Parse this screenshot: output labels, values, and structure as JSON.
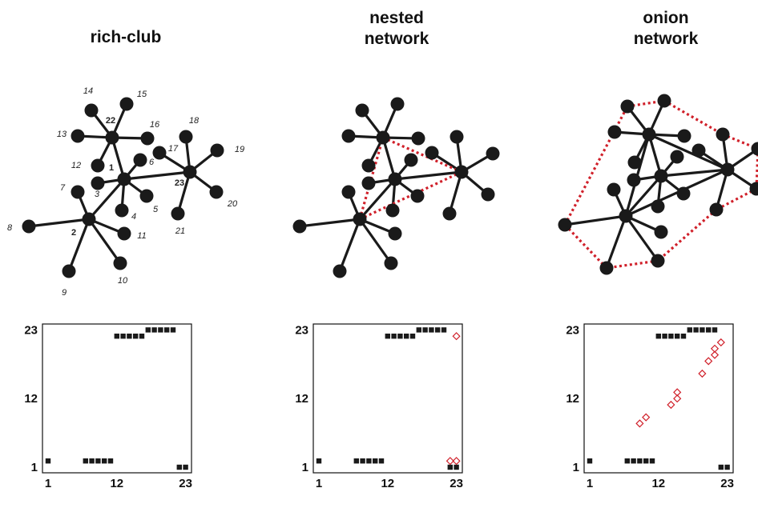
{
  "titles": [
    {
      "lines": [
        "rich-club"
      ]
    },
    {
      "lines": [
        "nested",
        "network"
      ]
    },
    {
      "lines": [
        "onion",
        "network"
      ]
    }
  ],
  "node_labels": [
    "1",
    "2",
    "3",
    "4",
    "5",
    "6",
    "7",
    "8",
    "9",
    "10",
    "11",
    "12",
    "13",
    "14",
    "15",
    "16",
    "17",
    "18",
    "19",
    "20",
    "21",
    "22",
    "23"
  ],
  "bold_labels": [
    "1",
    "2",
    "22",
    "23"
  ],
  "matrix_axis_ticks": [
    "1",
    "12",
    "23"
  ],
  "colors": {
    "node": "#1a1a1a",
    "added_edge": "#d0202a",
    "added_marker": "#d0202a"
  },
  "networks": [
    {
      "name": "rich-club",
      "edges": [
        [
          1,
          2
        ],
        [
          1,
          22
        ],
        [
          1,
          23
        ],
        [
          1,
          3
        ],
        [
          1,
          4
        ],
        [
          1,
          5
        ],
        [
          1,
          6
        ],
        [
          2,
          7
        ],
        [
          2,
          8
        ],
        [
          2,
          9
        ],
        [
          2,
          10
        ],
        [
          2,
          11
        ],
        [
          22,
          12
        ],
        [
          22,
          13
        ],
        [
          22,
          14
        ],
        [
          22,
          15
        ],
        [
          22,
          16
        ],
        [
          23,
          17
        ],
        [
          23,
          18
        ],
        [
          23,
          19
        ],
        [
          23,
          20
        ],
        [
          23,
          21
        ]
      ],
      "added_edges": []
    },
    {
      "name": "nested network",
      "edges": [
        [
          1,
          2
        ],
        [
          1,
          22
        ],
        [
          1,
          23
        ],
        [
          1,
          3
        ],
        [
          1,
          4
        ],
        [
          1,
          5
        ],
        [
          1,
          6
        ],
        [
          2,
          7
        ],
        [
          2,
          8
        ],
        [
          2,
          9
        ],
        [
          2,
          10
        ],
        [
          2,
          11
        ],
        [
          22,
          12
        ],
        [
          22,
          13
        ],
        [
          22,
          14
        ],
        [
          22,
          15
        ],
        [
          22,
          16
        ],
        [
          23,
          17
        ],
        [
          23,
          18
        ],
        [
          23,
          19
        ],
        [
          23,
          20
        ],
        [
          23,
          21
        ]
      ],
      "added_edges": [
        [
          2,
          22
        ],
        [
          2,
          23
        ],
        [
          22,
          23
        ]
      ]
    },
    {
      "name": "onion network",
      "edges": [
        [
          1,
          2
        ],
        [
          1,
          22
        ],
        [
          1,
          23
        ],
        [
          1,
          3
        ],
        [
          1,
          4
        ],
        [
          1,
          5
        ],
        [
          1,
          6
        ],
        [
          2,
          7
        ],
        [
          2,
          8
        ],
        [
          2,
          9
        ],
        [
          2,
          10
        ],
        [
          2,
          11
        ],
        [
          22,
          12
        ],
        [
          22,
          13
        ],
        [
          22,
          14
        ],
        [
          22,
          15
        ],
        [
          22,
          16
        ],
        [
          23,
          17
        ],
        [
          23,
          18
        ],
        [
          23,
          19
        ],
        [
          23,
          20
        ],
        [
          23,
          21
        ],
        [
          2,
          22
        ],
        [
          2,
          23
        ],
        [
          22,
          23
        ]
      ],
      "added_edges": [
        [
          14,
          15
        ],
        [
          15,
          18
        ],
        [
          18,
          19
        ],
        [
          19,
          20
        ],
        [
          20,
          21
        ],
        [
          21,
          10
        ],
        [
          10,
          9
        ],
        [
          9,
          8
        ],
        [
          8,
          14
        ]
      ]
    }
  ],
  "matrices": [
    {
      "name": "rich-club",
      "filled": [
        [
          1,
          22
        ],
        [
          1,
          23
        ],
        [
          2,
          1
        ],
        [
          2,
          7
        ],
        [
          2,
          8
        ],
        [
          2,
          9
        ],
        [
          2,
          10
        ],
        [
          2,
          11
        ],
        [
          22,
          12
        ],
        [
          22,
          13
        ],
        [
          22,
          14
        ],
        [
          22,
          15
        ],
        [
          22,
          16
        ],
        [
          23,
          17
        ],
        [
          23,
          18
        ],
        [
          23,
          19
        ],
        [
          23,
          20
        ],
        [
          23,
          21
        ]
      ],
      "added": []
    },
    {
      "name": "nested network",
      "filled": [
        [
          1,
          22
        ],
        [
          1,
          23
        ],
        [
          2,
          1
        ],
        [
          2,
          7
        ],
        [
          2,
          8
        ],
        [
          2,
          9
        ],
        [
          2,
          10
        ],
        [
          2,
          11
        ],
        [
          22,
          12
        ],
        [
          22,
          13
        ],
        [
          22,
          14
        ],
        [
          22,
          15
        ],
        [
          22,
          16
        ],
        [
          23,
          17
        ],
        [
          23,
          18
        ],
        [
          23,
          19
        ],
        [
          23,
          20
        ],
        [
          23,
          21
        ]
      ],
      "added": [
        [
          2,
          22
        ],
        [
          2,
          23
        ],
        [
          22,
          23
        ]
      ]
    },
    {
      "name": "onion network",
      "filled": [
        [
          1,
          22
        ],
        [
          1,
          23
        ],
        [
          2,
          1
        ],
        [
          2,
          7
        ],
        [
          2,
          8
        ],
        [
          2,
          9
        ],
        [
          2,
          10
        ],
        [
          2,
          11
        ],
        [
          22,
          12
        ],
        [
          22,
          13
        ],
        [
          22,
          14
        ],
        [
          22,
          15
        ],
        [
          22,
          16
        ],
        [
          23,
          17
        ],
        [
          23,
          18
        ],
        [
          23,
          19
        ],
        [
          23,
          20
        ],
        [
          23,
          21
        ]
      ],
      "added": [
        [
          8,
          9
        ],
        [
          9,
          10
        ],
        [
          11,
          14
        ],
        [
          12,
          15
        ],
        [
          13,
          15
        ],
        [
          16,
          19
        ],
        [
          18,
          20
        ],
        [
          19,
          21
        ],
        [
          20,
          21
        ],
        [
          21,
          22
        ]
      ]
    }
  ]
}
